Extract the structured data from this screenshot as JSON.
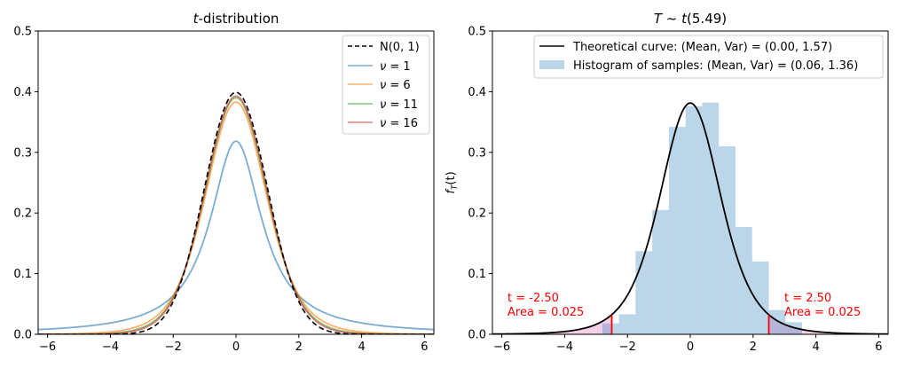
{
  "chart_data": [
    {
      "type": "line",
      "title": "t-distribution",
      "title_italic_part": "t",
      "title_rest": "-distribution",
      "xlim": [
        -6.3,
        6.3
      ],
      "ylim": [
        0,
        0.5
      ],
      "xticks": [
        -6,
        -4,
        -2,
        0,
        2,
        4,
        6
      ],
      "xtick_labels": [
        "−6",
        "−4",
        "−2",
        "0",
        "2",
        "4",
        "6"
      ],
      "yticks": [
        0.0,
        0.1,
        0.2,
        0.3,
        0.4,
        0.5
      ],
      "ytick_labels": [
        "0.0",
        "0.1",
        "0.2",
        "0.3",
        "0.4",
        "0.5"
      ],
      "series": [
        {
          "name": "N(0, 1)",
          "label_prefix": "",
          "label_value": "N(0, 1)",
          "dist": "normal",
          "color": "#000000",
          "dash": true
        },
        {
          "name": "ν = 1",
          "label_prefix": "ν",
          "label_value": " = 1",
          "dist": "t",
          "df": 1,
          "color": "#1f77b4",
          "dash": false
        },
        {
          "name": "ν = 6",
          "label_prefix": "ν",
          "label_value": " = 6",
          "dist": "t",
          "df": 6,
          "color": "#ff7f0e",
          "dash": false
        },
        {
          "name": "ν = 11",
          "label_prefix": "ν",
          "label_value": " = 11",
          "dist": "t",
          "df": 11,
          "color": "#2ca02c",
          "dash": false
        },
        {
          "name": "ν = 16",
          "label_prefix": "ν",
          "label_value": " = 16",
          "dist": "t",
          "df": 16,
          "color": "#d62728",
          "dash": false
        }
      ],
      "legend_position": "top-right"
    },
    {
      "type": "line+histogram",
      "title": "T ~ t(5.49)",
      "title_T": "T",
      "title_sim": " ~ ",
      "title_t": "t",
      "title_arg": "(5.49)",
      "ylabel": "f_T(t)",
      "ylabel_f": "f",
      "ylabel_sub": "T",
      "ylabel_arg": "(t)",
      "xlim": [
        -6.3,
        6.3
      ],
      "ylim": [
        0,
        0.5
      ],
      "xticks": [
        -6,
        -4,
        -2,
        0,
        2,
        4,
        6
      ],
      "xtick_labels": [
        "−6",
        "−4",
        "−2",
        "0",
        "2",
        "4",
        "6"
      ],
      "yticks": [
        0.0,
        0.1,
        0.2,
        0.3,
        0.4,
        0.5
      ],
      "ytick_labels": [
        "0.0",
        "0.1",
        "0.2",
        "0.3",
        "0.4",
        "0.5"
      ],
      "df": 5.49,
      "curve_color": "#000000",
      "hist_color": "#1f77b4",
      "hist_alpha": 0.3,
      "hist_bin_edges": [
        -2.8,
        -2.27,
        -1.74,
        -1.21,
        -0.68,
        -0.15,
        0.38,
        0.91,
        1.44,
        1.97,
        2.5,
        3.03
      ],
      "hist_values": [
        0.018,
        0.033,
        0.137,
        0.205,
        0.342,
        0.376,
        0.382,
        0.31,
        0.177,
        0.12,
        0.04,
        0.02
      ],
      "hist_bin_edges_full": [
        -2.8,
        -2.27,
        -1.74,
        -1.21,
        -0.68,
        -0.15,
        0.38,
        0.91,
        1.44,
        1.97,
        2.5,
        3.03,
        3.56
      ],
      "critical_left": -2.5,
      "critical_right": 2.5,
      "critical_color": "#ff0000",
      "tail_fill_color": "#e377c2",
      "annotation_left": {
        "line1": "t = -2.50",
        "line2": "Area = 0.025"
      },
      "annotation_right": {
        "line1": "t = 2.50",
        "line2": "Area = 0.025"
      },
      "legend": [
        {
          "label": "Theoretical curve: (Mean, Var) = (0.00, 1.57)",
          "kind": "line"
        },
        {
          "label": "Histogram of samples: (Mean, Var) = (0.06, 1.36)",
          "kind": "patch"
        }
      ],
      "legend_position": "top-right"
    }
  ]
}
